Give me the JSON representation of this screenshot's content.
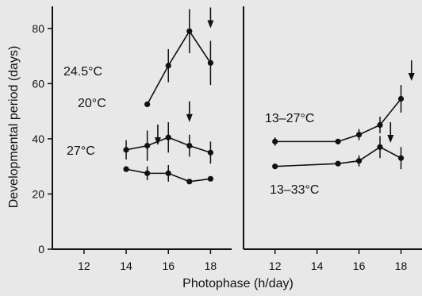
{
  "chart_data": {
    "type": "line",
    "xlabel": "Photophase (h/day)",
    "ylabel": "Developmental period (days)",
    "panels": [
      {
        "id": "constant",
        "xlim": [
          10.5,
          19
        ],
        "ylim": [
          0,
          88
        ],
        "x_ticks": [
          12,
          14,
          16,
          18
        ],
        "y_ticks": [
          0,
          20,
          40,
          60,
          80
        ],
        "series": [
          {
            "name": "20°C",
            "points": [
              {
                "x": 15,
                "y": 52.5,
                "err": 0
              },
              {
                "x": 16,
                "y": 66.5,
                "err": 6
              },
              {
                "x": 17,
                "y": 79,
                "err": 8
              },
              {
                "x": 18,
                "y": 67.5,
                "err": 8
              }
            ],
            "arrow_x": 18
          },
          {
            "name": "24.5°C",
            "points": [
              {
                "x": 14,
                "y": 36,
                "err": 3.5
              },
              {
                "x": 15,
                "y": 37.5,
                "err": 5.5
              },
              {
                "x": 16,
                "y": 40.5,
                "err": 5.5
              },
              {
                "x": 17,
                "y": 37.5,
                "err": 4
              },
              {
                "x": 18,
                "y": 35,
                "err": 4
              }
            ],
            "arrow_x": 17
          },
          {
            "name": "27°C",
            "points": [
              {
                "x": 14,
                "y": 29,
                "err": 1
              },
              {
                "x": 15,
                "y": 27.5,
                "err": 2.5
              },
              {
                "x": 16,
                "y": 27.5,
                "err": 3
              },
              {
                "x": 17,
                "y": 24.5,
                "err": 0
              },
              {
                "x": 18,
                "y": 25.5,
                "err": 0
              }
            ],
            "arrow_x": 15.5
          }
        ]
      },
      {
        "id": "fluctuating",
        "xlim": [
          10.5,
          19
        ],
        "ylim": [
          0,
          88
        ],
        "x_ticks": [
          12,
          14,
          16,
          18
        ],
        "y_ticks": [],
        "series": [
          {
            "name": "13–27°C",
            "points": [
              {
                "x": 12,
                "y": 39,
                "err": 1.5
              },
              {
                "x": 15,
                "y": 39,
                "err": 1
              },
              {
                "x": 16,
                "y": 41.5,
                "err": 2
              },
              {
                "x": 17,
                "y": 45,
                "err": 3
              },
              {
                "x": 18,
                "y": 54.5,
                "err": 5
              }
            ],
            "arrow_x": 18.5
          },
          {
            "name": "13–33°C",
            "points": [
              {
                "x": 12,
                "y": 30,
                "err": 0
              },
              {
                "x": 15,
                "y": 31,
                "err": 0.5
              },
              {
                "x": 16,
                "y": 32,
                "err": 2
              },
              {
                "x": 17,
                "y": 37,
                "err": 4
              },
              {
                "x": 18,
                "y": 33,
                "err": 4
              }
            ],
            "arrow_x": 17.5
          }
        ]
      }
    ]
  }
}
